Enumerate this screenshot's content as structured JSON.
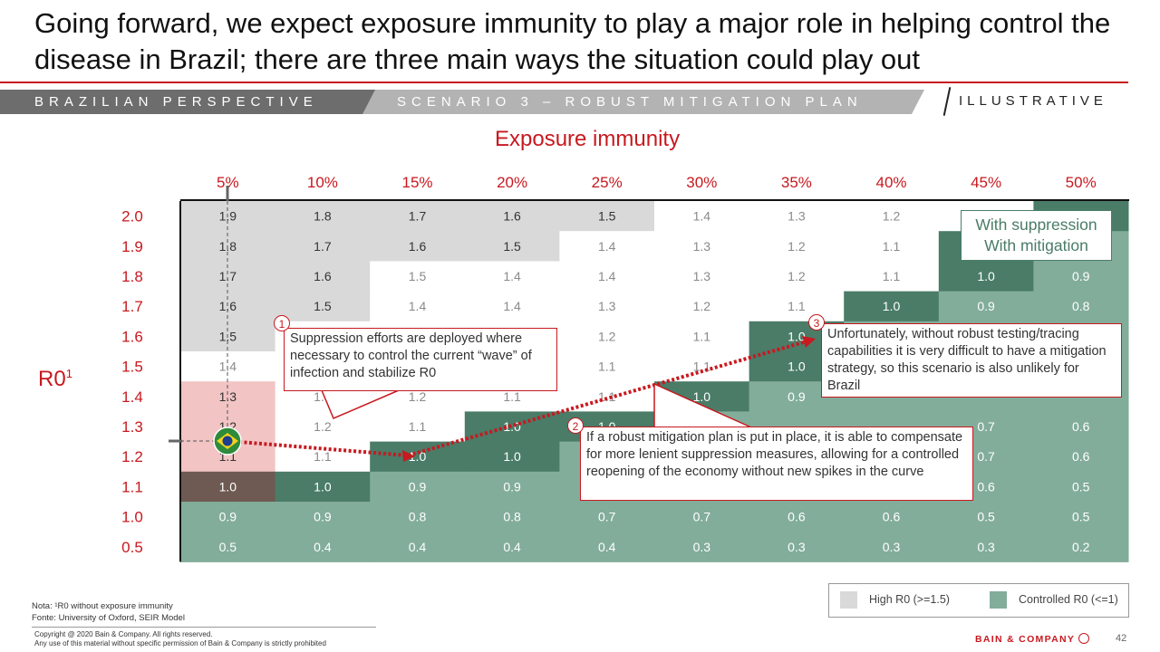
{
  "title": "Going forward, we expect exposure immunity to play a major role in helping control the disease in Brazil; there are three main ways the situation could play out",
  "header": {
    "perspective": "BRAZILIAN PERSPECTIVE",
    "scenario": "SCENARIO 3 – ROBUST MITIGATION PLAN",
    "illustrative": "ILLUSTRATIVE"
  },
  "chart_data": {
    "type": "heatmap",
    "title": "Exposure immunity",
    "xlabel": "Exposure immunity",
    "ylabel": "R0¹",
    "columns": [
      "5%",
      "10%",
      "15%",
      "20%",
      "25%",
      "30%",
      "35%",
      "40%",
      "45%",
      "50%"
    ],
    "rows": [
      "2.0",
      "1.9",
      "1.8",
      "1.7",
      "1.6",
      "1.5",
      "1.4",
      "1.3",
      "1.2",
      "1.1",
      "1.0",
      "0.5"
    ],
    "values": [
      [
        "1.9",
        "1.8",
        "1.7",
        "1.6",
        "1.5",
        "1.4",
        "1.3",
        "1.2",
        "",
        ""
      ],
      [
        "1.8",
        "1.7",
        "1.6",
        "1.5",
        "1.4",
        "1.3",
        "1.2",
        "1.1",
        "",
        ""
      ],
      [
        "1.7",
        "1.6",
        "1.5",
        "1.4",
        "1.4",
        "1.3",
        "1.2",
        "1.1",
        "1.0",
        "0.9"
      ],
      [
        "1.6",
        "1.5",
        "1.4",
        "1.4",
        "1.3",
        "1.2",
        "1.1",
        "1.0",
        "0.9",
        "0.8"
      ],
      [
        "1.5",
        "",
        "",
        "",
        "1.2",
        "1.1",
        "1.0",
        "",
        "",
        ""
      ],
      [
        "1.4",
        "",
        "",
        "",
        "1.1",
        "1.1",
        "1.0",
        "",
        "",
        ""
      ],
      [
        "1.3",
        "1.3",
        "1.2",
        "1.1",
        "1.1",
        "1.0",
        "0.9",
        "",
        "",
        ""
      ],
      [
        "1.2",
        "1.2",
        "1.1",
        "1.0",
        "1.0",
        "",
        "",
        "",
        "0.7",
        "0.6"
      ],
      [
        "1.1",
        "1.1",
        "1.0",
        "1.0",
        "",
        "",
        "",
        "",
        "0.7",
        "0.6"
      ],
      [
        "1.0",
        "1.0",
        "0.9",
        "0.9",
        "",
        "",
        "",
        "",
        "0.6",
        "0.5"
      ],
      [
        "0.9",
        "0.9",
        "0.8",
        "0.8",
        "0.7",
        "0.7",
        "0.6",
        "0.6",
        "0.5",
        "0.5"
      ],
      [
        "0.5",
        "0.4",
        "0.4",
        "0.4",
        "0.4",
        "0.3",
        "0.3",
        "0.3",
        "0.3",
        "0.2"
      ]
    ],
    "shading": [
      [
        "G",
        "G",
        "G",
        "G",
        "G",
        "W",
        "W",
        "W",
        "W",
        "D"
      ],
      [
        "G",
        "G",
        "G",
        "G",
        "W",
        "W",
        "W",
        "W",
        "D",
        "L"
      ],
      [
        "G",
        "G",
        "W",
        "W",
        "W",
        "W",
        "W",
        "W",
        "D",
        "L"
      ],
      [
        "G",
        "G",
        "W",
        "W",
        "W",
        "W",
        "W",
        "D",
        "L",
        "L"
      ],
      [
        "G",
        "W",
        "W",
        "W",
        "W",
        "W",
        "D",
        "L",
        "L",
        "L"
      ],
      [
        "W",
        "W",
        "W",
        "W",
        "W",
        "W",
        "D",
        "L",
        "L",
        "L"
      ],
      [
        "P",
        "W",
        "W",
        "W",
        "W",
        "D",
        "L",
        "L",
        "L",
        "L"
      ],
      [
        "P",
        "W",
        "W",
        "D",
        "D",
        "L",
        "L",
        "L",
        "L",
        "L"
      ],
      [
        "P",
        "W",
        "D",
        "D",
        "L",
        "L",
        "L",
        "L",
        "L",
        "L"
      ],
      [
        "B",
        "D",
        "L",
        "L",
        "L",
        "L",
        "L",
        "L",
        "L",
        "L"
      ],
      [
        "L",
        "L",
        "L",
        "L",
        "L",
        "L",
        "L",
        "L",
        "L",
        "L"
      ],
      [
        "L",
        "L",
        "L",
        "L",
        "L",
        "L",
        "L",
        "L",
        "L",
        "L"
      ]
    ],
    "colors": {
      "G": "#d9d9d9",
      "W": "#ffffff",
      "P": "#f2c4c4",
      "B": "#6e5a52",
      "D": "#4a7c68",
      "L": "#82ad9a"
    },
    "legend": [
      {
        "label": "High R0 (>=1.5)",
        "color": "#d9d9d9"
      },
      {
        "label": "Controlled R0 (<=1)",
        "color": "#82ad9a"
      }
    ],
    "legend_position": "bottom-right"
  },
  "r0_label": "R0",
  "r0_sup": "1",
  "suppression_box": {
    "line1": "With suppression",
    "line2": "With mitigation"
  },
  "callouts": [
    {
      "num": "1",
      "text": "Suppression efforts are deployed where necessary to control the current “wave” of infection and stabilize R0"
    },
    {
      "num": "2",
      "text": "If a robust mitigation plan is put in place, it is able to compensate for more lenient suppression measures, allowing for a controlled reopening of the economy without new spikes in the curve"
    },
    {
      "num": "3",
      "text": "Unfortunately, without robust testing/tracing capabilities it is very difficult to have a mitigation strategy, so this scenario is also unlikely for Brazil"
    }
  ],
  "notes": {
    "nota": "Nota: ¹R0 without exposure immunity",
    "fonte": "Fonte: University of Oxford, SEIR Model",
    "copyright": "Copyright @ 2020 Bain & Company. All rights reserved.",
    "disclaimer": "Any use of this material without specific permission of Bain & Company is strictly prohibited"
  },
  "brand": "BAIN & COMPANY",
  "page_number": "42"
}
